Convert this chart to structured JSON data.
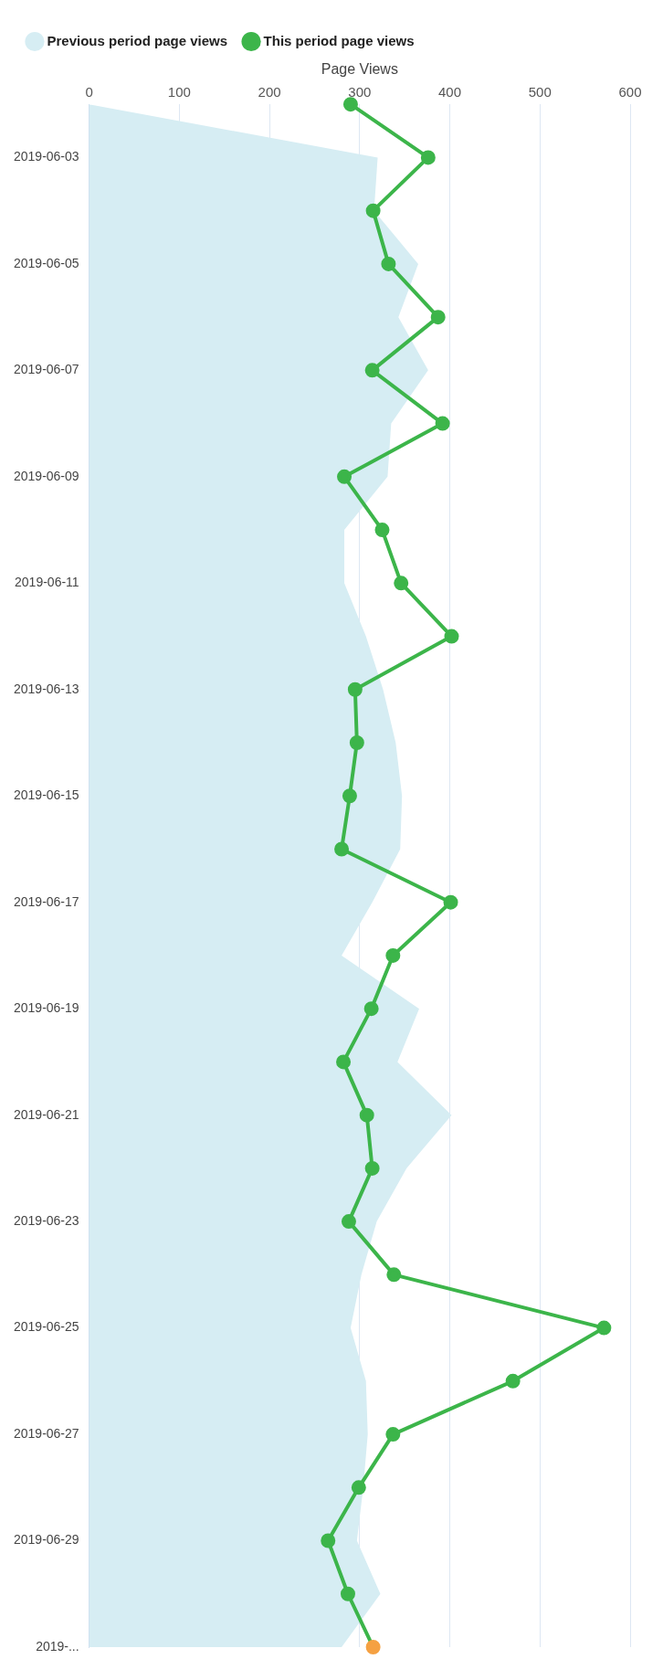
{
  "chart_data": {
    "type": "line",
    "orientation": "horizontal",
    "xlabel": "Page Views",
    "categories": [
      null,
      "2019-06-03",
      null,
      "2019-06-05",
      null,
      "2019-06-07",
      null,
      "2019-06-09",
      null,
      "2019-06-11",
      null,
      "2019-06-13",
      null,
      "2019-06-15",
      null,
      "2019-06-17",
      null,
      "2019-06-19",
      null,
      "2019-06-21",
      null,
      "2019-06-23",
      null,
      "2019-06-25",
      null,
      "2019-06-27",
      null,
      "2019-06-29",
      null,
      "2019-..."
    ],
    "series": [
      {
        "name": "Previous period page views",
        "type": "area",
        "color": "#d6edf3",
        "marker": "none",
        "values": [
          0,
          320,
          316,
          365,
          343,
          376,
          335,
          331,
          283,
          283,
          307,
          326,
          340,
          347,
          345,
          314,
          280,
          366,
          342,
          402,
          352,
          319,
          302,
          290,
          307,
          309,
          304,
          297,
          323,
          280
        ]
      },
      {
        "name": "This period page views",
        "color": "#3cb54a",
        "marker": "circle",
        "colors": [
          "#3cb54a",
          "#3cb54a",
          "#3cb54a",
          "#3cb54a",
          "#3cb54a",
          "#3cb54a",
          "#3cb54a",
          "#3cb54a",
          "#3cb54a",
          "#3cb54a",
          "#3cb54a",
          "#3cb54a",
          "#3cb54a",
          "#3cb54a",
          "#3cb54a",
          "#3cb54a",
          "#3cb54a",
          "#3cb54a",
          "#3cb54a",
          "#3cb54a",
          "#3cb54a",
          "#3cb54a",
          "#3cb54a",
          "#3cb54a",
          "#3cb54a",
          "#3cb54a",
          "#3cb54a",
          "#3cb54a",
          "#3cb54a",
          "#f5a142"
        ],
        "values": [
          290,
          376,
          315,
          332,
          387,
          314,
          392,
          283,
          325,
          346,
          402,
          295,
          297,
          289,
          280,
          401,
          337,
          313,
          282,
          308,
          314,
          288,
          338,
          571,
          470,
          337,
          299,
          265,
          287,
          315
        ]
      }
    ],
    "xlim": [
      0,
      600
    ],
    "xticks": [
      0,
      100,
      200,
      300,
      400,
      500,
      600
    ],
    "grid": "x",
    "legend": "top"
  }
}
